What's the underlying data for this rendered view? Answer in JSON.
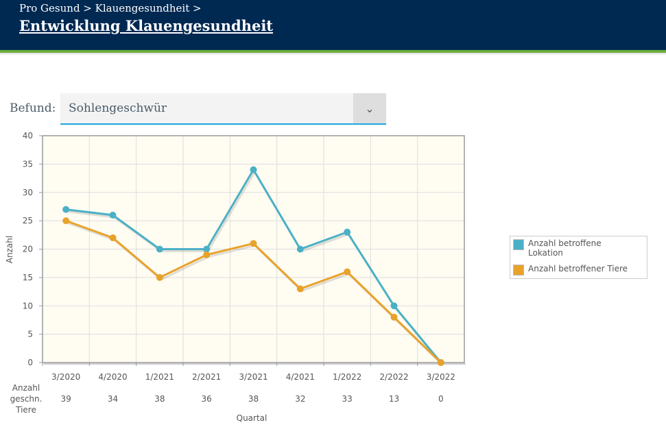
{
  "header": {
    "breadcrumb": "Pro Gesund > Klauengesundheit >",
    "title": "Entwicklung Klauengesundheit"
  },
  "filter": {
    "label": "Befund:",
    "value": "Sohlengeschwür",
    "icon": "chevron-down-icon"
  },
  "chart_data": {
    "type": "line",
    "categories": [
      "3/2020",
      "4/2020",
      "1/2021",
      "2/2021",
      "3/2021",
      "4/2021",
      "1/2022",
      "2/2022",
      "3/2022"
    ],
    "series": [
      {
        "name": "Anzahl betroffene Lokation",
        "color": "#4bb0c6",
        "values": [
          27,
          26,
          20,
          20,
          34,
          20,
          23,
          10,
          0
        ]
      },
      {
        "name": "Anzahl betroffener Tiere",
        "color": "#e8a22a",
        "values": [
          25,
          22,
          15,
          19,
          21,
          13,
          16,
          8,
          0
        ]
      }
    ],
    "ylabel": "Anzahl",
    "xlabel": "Quartal",
    "ylim": [
      0,
      40
    ],
    "yticks": [
      0,
      5,
      10,
      15,
      20,
      25,
      30,
      35,
      40
    ],
    "grid": true,
    "legend": "right",
    "table": {
      "label": [
        "Anzahl",
        "geschn.",
        "Tiere"
      ],
      "values": [
        "39",
        "34",
        "38",
        "36",
        "38",
        "32",
        "33",
        "13",
        "0"
      ]
    }
  }
}
